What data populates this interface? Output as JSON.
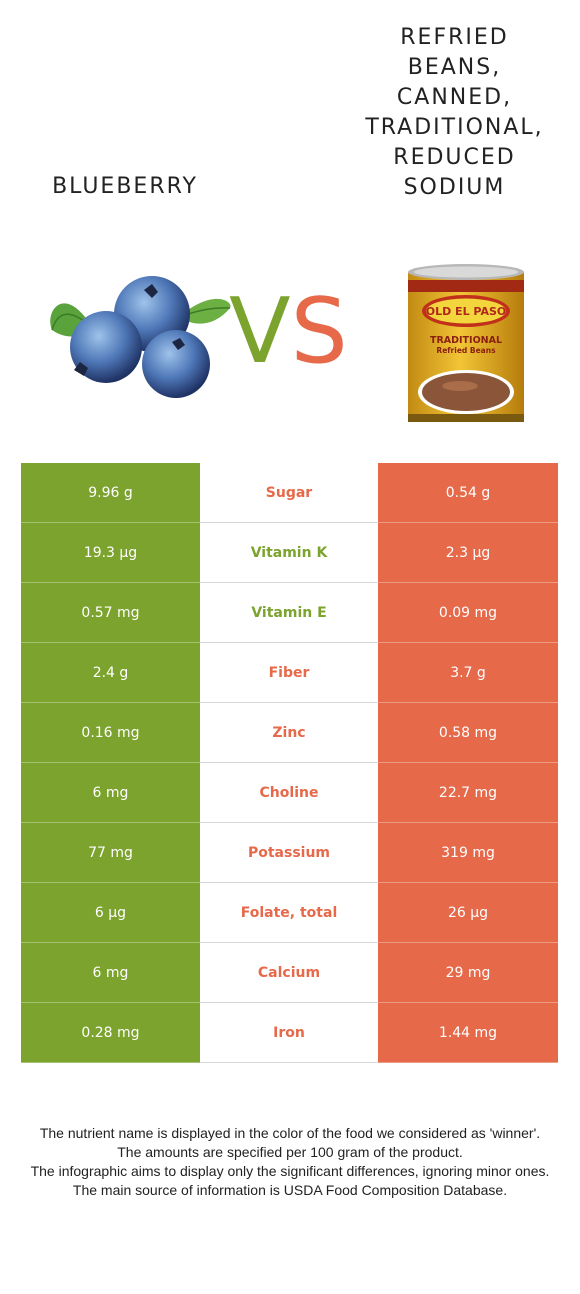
{
  "left_food": {
    "name": "Blueberry",
    "color": "#7ba32e"
  },
  "right_food": {
    "name": "Refried beans, canned, traditional, reduced sodium",
    "color": "#e6694a"
  },
  "vs": {
    "v": "V",
    "s": "S"
  },
  "can_label": {
    "brand": "OLD EL PASO",
    "line1": "TRADITIONAL",
    "line2": "Refried Beans"
  },
  "rows": [
    {
      "left": "9.96 g",
      "nutrient": "Sugar",
      "right": "0.54 g",
      "winner": "right"
    },
    {
      "left": "19.3 µg",
      "nutrient": "Vitamin K",
      "right": "2.3 µg",
      "winner": "left"
    },
    {
      "left": "0.57 mg",
      "nutrient": "Vitamin E",
      "right": "0.09 mg",
      "winner": "left"
    },
    {
      "left": "2.4 g",
      "nutrient": "Fiber",
      "right": "3.7 g",
      "winner": "right"
    },
    {
      "left": "0.16 mg",
      "nutrient": "Zinc",
      "right": "0.58 mg",
      "winner": "right"
    },
    {
      "left": "6 mg",
      "nutrient": "Choline",
      "right": "22.7 mg",
      "winner": "right"
    },
    {
      "left": "77 mg",
      "nutrient": "Potassium",
      "right": "319 mg",
      "winner": "right"
    },
    {
      "left": "6 µg",
      "nutrient": "Folate, total",
      "right": "26 µg",
      "winner": "right"
    },
    {
      "left": "6 mg",
      "nutrient": "Calcium",
      "right": "29 mg",
      "winner": "right"
    },
    {
      "left": "0.28 mg",
      "nutrient": "Iron",
      "right": "1.44 mg",
      "winner": "right"
    }
  ],
  "notes": [
    "The nutrient name is displayed in the color of the food we considered as 'winner'.",
    "The amounts are specified per 100 gram of the product.",
    "The infographic aims to display only the significant differences, ignoring minor ones.",
    "The main source of information is USDA Food Composition Database."
  ]
}
